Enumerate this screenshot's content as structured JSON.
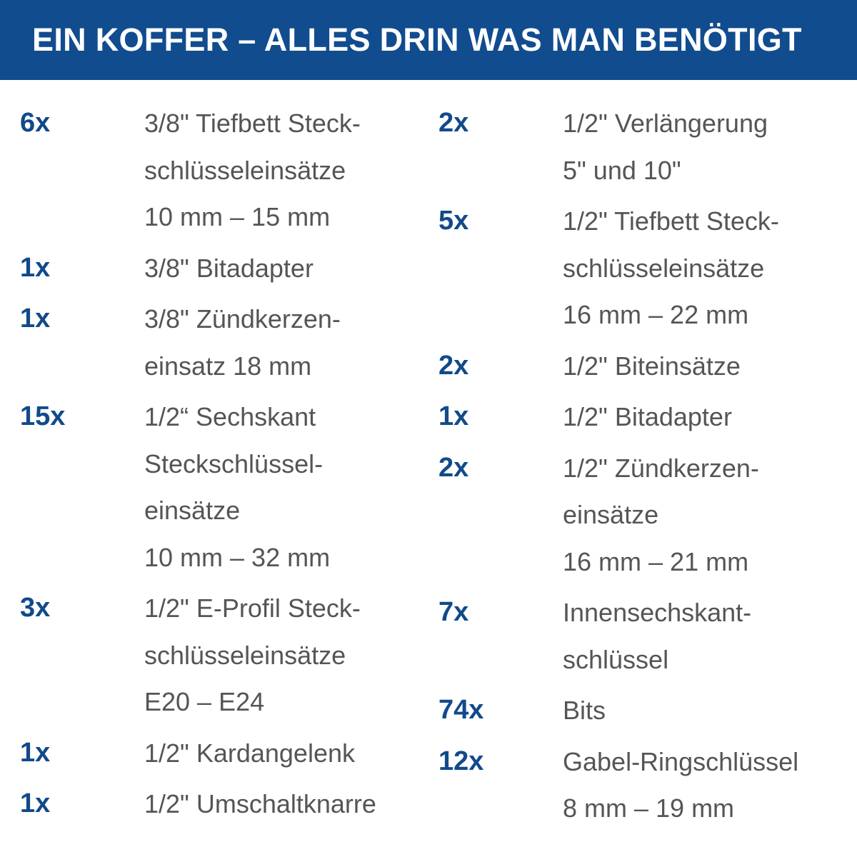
{
  "header": {
    "title": "EIN KOFFER – ALLES DRIN WAS MAN BENÖTIGT"
  },
  "columns": [
    {
      "items": [
        {
          "qty": "6x",
          "lines": [
            "3/8\" Tiefbett Steck-",
            "schlüsseleinsätze",
            "10 mm – 15 mm"
          ]
        },
        {
          "qty": "1x",
          "lines": [
            "3/8\" Bitadapter"
          ]
        },
        {
          "qty": "1x",
          "lines": [
            "3/8\" Zündkerzen-",
            "einsatz 18 mm"
          ]
        },
        {
          "qty": "15x",
          "lines": [
            "1/2“ Sechskant",
            "Steckschlüssel-",
            "einsätze",
            "10 mm – 32 mm"
          ]
        },
        {
          "qty": "3x",
          "lines": [
            "1/2\" E-Profil Steck-",
            "schlüsseleinsätze",
            "E20 – E24"
          ]
        },
        {
          "qty": "1x",
          "lines": [
            "1/2\" Kardangelenk"
          ]
        },
        {
          "qty": "1x",
          "lines": [
            "1/2\" Umschaltknarre"
          ]
        }
      ]
    },
    {
      "items": [
        {
          "qty": "2x",
          "lines": [
            "1/2\" Verlängerung",
            "5\" und 10\""
          ]
        },
        {
          "qty": "5x",
          "lines": [
            "1/2\" Tiefbett Steck-",
            "schlüsseleinsätze",
            "16 mm – 22 mm"
          ]
        },
        {
          "qty": "2x",
          "lines": [
            "1/2\" Biteinsätze"
          ]
        },
        {
          "qty": "1x",
          "lines": [
            "1/2\" Bitadapter"
          ]
        },
        {
          "qty": "2x",
          "lines": [
            "1/2\" Zündkerzen-",
            "einsätze",
            "16 mm – 21 mm"
          ]
        },
        {
          "qty": "7x",
          "lines": [
            "Innensechskant-",
            "schlüssel"
          ]
        },
        {
          "qty": "74x",
          "lines": [
            "Bits"
          ]
        },
        {
          "qty": "12x",
          "lines": [
            "Gabel-Ringschlüssel",
            "8 mm – 19 mm"
          ]
        }
      ]
    }
  ]
}
